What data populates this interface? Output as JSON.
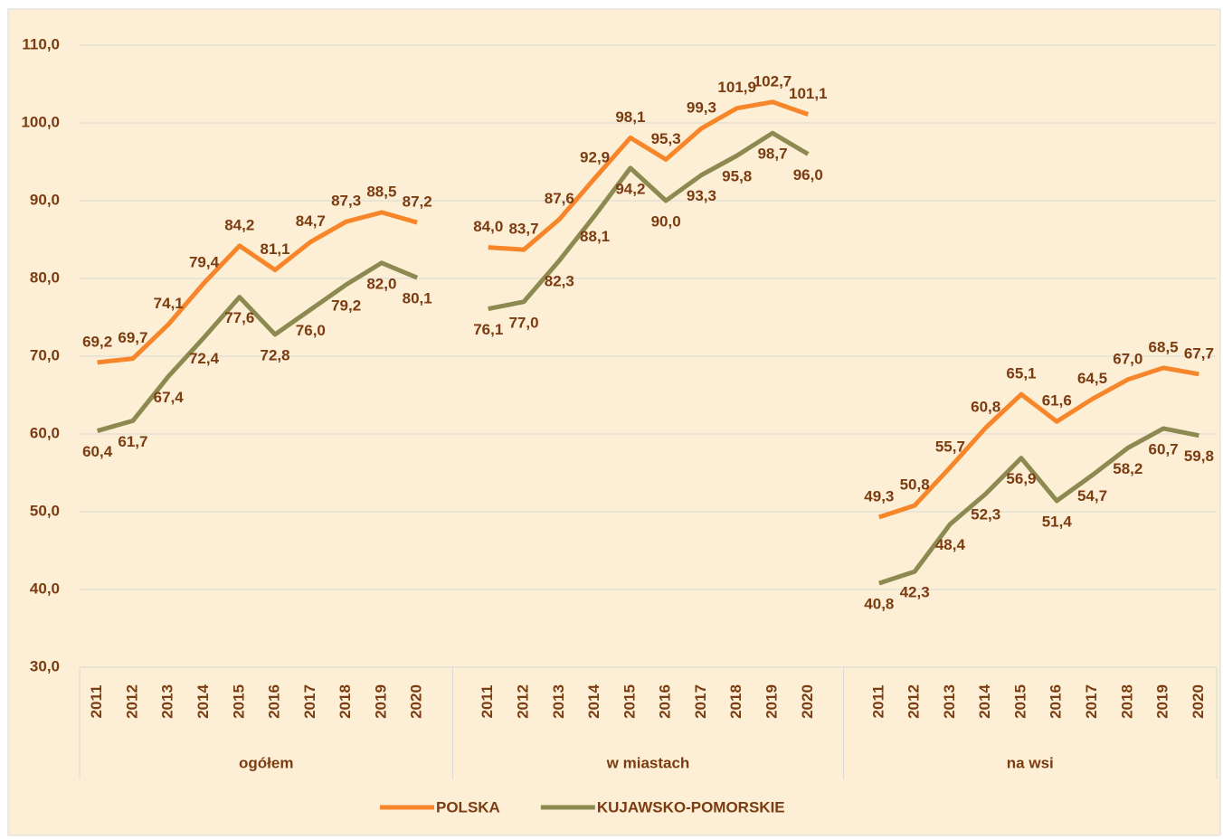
{
  "chart_data": {
    "type": "line",
    "categories": [
      "2011",
      "2012",
      "2013",
      "2014",
      "2015",
      "2016",
      "2017",
      "2018",
      "2019",
      "2020",
      null,
      "2011",
      "2012",
      "2013",
      "2014",
      "2015",
      "2016",
      "2017",
      "2018",
      "2019",
      "2020",
      null,
      "2011",
      "2012",
      "2013",
      "2014",
      "2015",
      "2016",
      "2017",
      "2018",
      "2019",
      "2020"
    ],
    "groups": [
      "ogółem",
      "w miastach",
      "na wsi"
    ],
    "series": [
      {
        "name": "POLSKA",
        "color": "#f7862a",
        "values": [
          69.2,
          69.7,
          74.1,
          79.4,
          84.2,
          81.1,
          84.7,
          87.3,
          88.5,
          87.2,
          null,
          84.0,
          83.7,
          87.6,
          92.9,
          98.1,
          95.3,
          99.3,
          101.9,
          102.7,
          101.1,
          null,
          49.3,
          50.8,
          55.7,
          60.8,
          65.1,
          61.6,
          64.5,
          67.0,
          68.5,
          67.7
        ],
        "value_labels": [
          "69,2",
          "69,7",
          "74,1",
          "79,4",
          "84,2",
          "81,1",
          "84,7",
          "87,3",
          "88,5",
          "87,2",
          null,
          "84,0",
          "83,7",
          "87,6",
          "92,9",
          "98,1",
          "95,3",
          "99,3",
          "101,9",
          "102,7",
          "101,1",
          null,
          "49,3",
          "50,8",
          "55,7",
          "60,8",
          "65,1",
          "61,6",
          "64,5",
          "67,0",
          "68,5",
          "67,7"
        ]
      },
      {
        "name": "KUJAWSKO-POMORSKIE",
        "color": "#8c8a50",
        "values": [
          60.4,
          61.7,
          67.4,
          72.4,
          77.6,
          72.8,
          76.0,
          79.2,
          82.0,
          80.1,
          null,
          76.1,
          77.0,
          82.3,
          88.1,
          94.2,
          90.0,
          93.3,
          95.8,
          98.7,
          96.0,
          null,
          40.8,
          42.3,
          48.4,
          52.3,
          56.9,
          51.4,
          54.7,
          58.2,
          60.7,
          59.8
        ],
        "value_labels": [
          "60,4",
          "61,7",
          "67,4",
          "72,4",
          "77,6",
          "72,8",
          "76,0",
          "79,2",
          "82,0",
          "80,1",
          null,
          "76,1",
          "77,0",
          "82,3",
          "88,1",
          "94,2",
          "90,0",
          "93,3",
          "95,8",
          "98,7",
          "96,0",
          null,
          "40,8",
          "42,3",
          "48,4",
          "52,3",
          "56,9",
          "51,4",
          "54,7",
          "58,2",
          "60,7",
          "59,8"
        ]
      }
    ],
    "ylim": [
      30,
      110
    ],
    "yticks": [
      {
        "value": 30,
        "label": "30,0"
      },
      {
        "value": 40,
        "label": "40,0"
      },
      {
        "value": 50,
        "label": "50,0"
      },
      {
        "value": 60,
        "label": "60,0"
      },
      {
        "value": 70,
        "label": "70,0"
      },
      {
        "value": 80,
        "label": "80,0"
      },
      {
        "value": 90,
        "label": "90,0"
      },
      {
        "value": 100,
        "label": "100,0"
      },
      {
        "value": 110,
        "label": "110,0"
      }
    ],
    "grid": true,
    "legend": "bottom"
  }
}
